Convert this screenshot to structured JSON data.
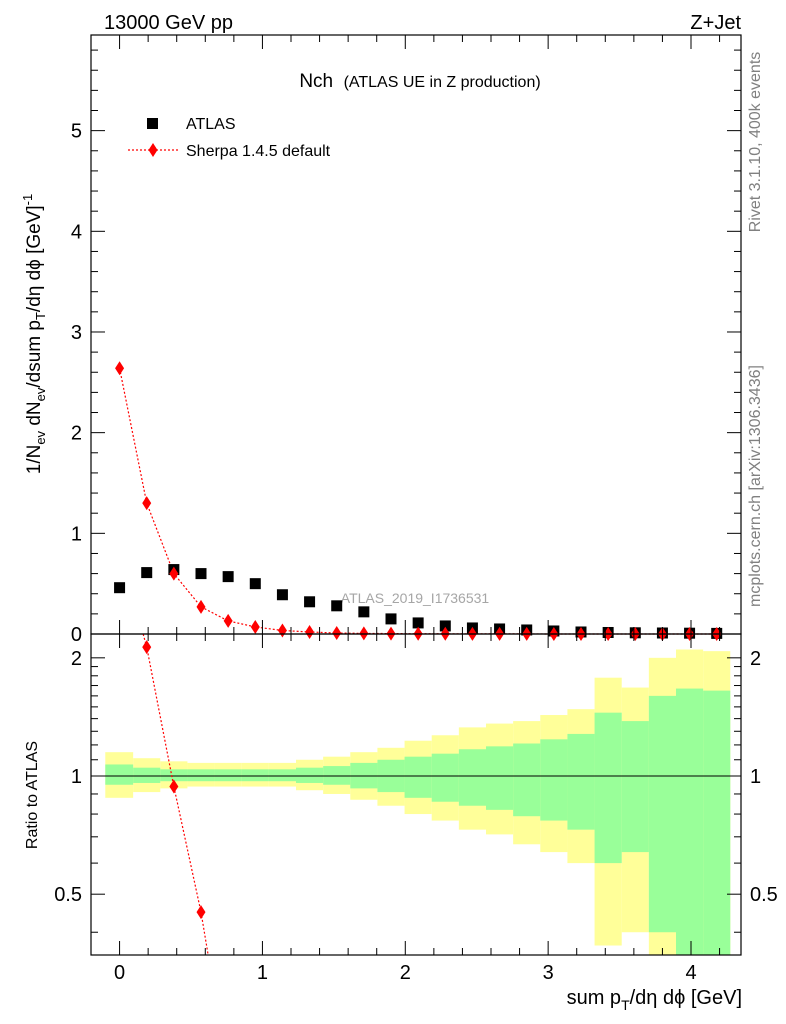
{
  "header": {
    "left": "13000 GeV pp",
    "right": "Z+Jet"
  },
  "side_text": {
    "rivet": "Rivet 3.1.10,  400k events",
    "mcplots": "mcplots.cern.ch [arXiv:1306.3436]"
  },
  "chart_data": [
    {
      "type": "scatter",
      "title": "Nch",
      "subtitle": "(ATLAS UE in Z production)",
      "watermark": "ATLAS_2019_I1736531",
      "ylabel_parts": {
        "a": "1/N",
        "b": "ev",
        "c": " dN",
        "d": "ev",
        "e": "/dsum p",
        "f": "T",
        "g": "/dη dϕ  [GeV]",
        "h": "-1"
      },
      "xlim": [
        -0.2,
        4.35
      ],
      "ylim": [
        0,
        5.95
      ],
      "yticks": [
        0,
        1,
        2,
        3,
        4,
        5
      ],
      "ytick_labels": [
        "0",
        "1",
        "2",
        "3",
        "4",
        "5"
      ],
      "legend": {
        "position": "top-left",
        "atlas": "ATLAS",
        "sherpa": "Sherpa 1.4.5 default"
      },
      "series": [
        {
          "name": "ATLAS",
          "color": "#000000",
          "x": [
            0.0,
            0.19,
            0.38,
            0.57,
            0.76,
            0.95,
            1.14,
            1.33,
            1.52,
            1.71,
            1.9,
            2.09,
            2.28,
            2.47,
            2.66,
            2.85,
            3.04,
            3.23,
            3.42,
            3.61,
            3.8,
            3.99,
            4.18
          ],
          "y": [
            0.46,
            0.61,
            0.64,
            0.6,
            0.57,
            0.5,
            0.39,
            0.32,
            0.28,
            0.22,
            0.15,
            0.11,
            0.08,
            0.06,
            0.05,
            0.04,
            0.03,
            0.02,
            0.015,
            0.012,
            0.01,
            0.008,
            0.006
          ]
        },
        {
          "name": "Sherpa 1.4.5 default",
          "color": "#ff0000",
          "x": [
            0.0,
            0.19,
            0.38,
            0.57,
            0.76,
            0.95,
            1.14,
            1.33,
            1.52,
            1.71,
            1.9,
            2.09,
            2.28,
            2.47,
            2.66,
            2.85,
            3.04,
            3.23,
            3.42,
            3.61,
            3.8,
            3.99,
            4.18
          ],
          "y": [
            2.64,
            1.3,
            0.6,
            0.27,
            0.13,
            0.07,
            0.035,
            0.02,
            0.01,
            0.006,
            0.004,
            0.003,
            0.002,
            0.001,
            0.001,
            0.001,
            0.0,
            0.0,
            0.0,
            0.0,
            0.0,
            0.0,
            0.0
          ]
        }
      ]
    },
    {
      "type": "area",
      "ylabel": "Ratio to ATLAS",
      "xlabel_parts": {
        "a": "sum p",
        "b": "T",
        "c": "/dη dϕ [GeV]"
      },
      "xlim": [
        -0.2,
        4.35
      ],
      "ylim": [
        0.35,
        2.3
      ],
      "xticks": [
        0,
        1,
        2,
        3,
        4
      ],
      "xtick_labels": [
        "0",
        "1",
        "2",
        "3",
        "4"
      ],
      "yticks": [
        0.5,
        1,
        2
      ],
      "ytick_labels": [
        "0.5",
        "1",
        "2"
      ],
      "bin_edges": [
        -0.1,
        0.095,
        0.285,
        0.475,
        0.665,
        0.855,
        1.045,
        1.235,
        1.425,
        1.615,
        1.805,
        1.995,
        2.185,
        2.375,
        2.565,
        2.755,
        2.945,
        3.135,
        3.325,
        3.515,
        3.705,
        3.895,
        4.085,
        4.275
      ],
      "bands": {
        "stat": {
          "color": "#99ff99",
          "lo": [
            0.95,
            0.96,
            0.97,
            0.97,
            0.97,
            0.97,
            0.97,
            0.96,
            0.95,
            0.93,
            0.91,
            0.88,
            0.86,
            0.84,
            0.82,
            0.79,
            0.77,
            0.73,
            0.6,
            0.64,
            0.4,
            0.35,
            0.35
          ],
          "hi": [
            1.07,
            1.05,
            1.04,
            1.04,
            1.04,
            1.04,
            1.04,
            1.05,
            1.06,
            1.08,
            1.1,
            1.12,
            1.14,
            1.17,
            1.19,
            1.21,
            1.24,
            1.28,
            1.45,
            1.38,
            1.6,
            1.67,
            1.65
          ]
        },
        "total": {
          "color": "#ffff99",
          "lo": [
            0.88,
            0.91,
            0.93,
            0.94,
            0.94,
            0.94,
            0.94,
            0.92,
            0.9,
            0.87,
            0.84,
            0.8,
            0.77,
            0.73,
            0.71,
            0.67,
            0.64,
            0.6,
            0.37,
            0.4,
            0.35,
            0.35,
            0.35
          ],
          "hi": [
            1.15,
            1.11,
            1.09,
            1.08,
            1.08,
            1.08,
            1.08,
            1.1,
            1.12,
            1.15,
            1.18,
            1.23,
            1.27,
            1.33,
            1.36,
            1.38,
            1.43,
            1.48,
            1.78,
            1.68,
            2.0,
            2.1,
            2.08
          ]
        }
      },
      "series": [
        {
          "name": "Sherpa 1.4.5 default",
          "color": "#ff0000",
          "x": [
            0.19,
            0.38,
            0.57,
            0.62
          ],
          "y": [
            2.13,
            0.94,
            0.45,
            0.3
          ]
        }
      ]
    }
  ]
}
